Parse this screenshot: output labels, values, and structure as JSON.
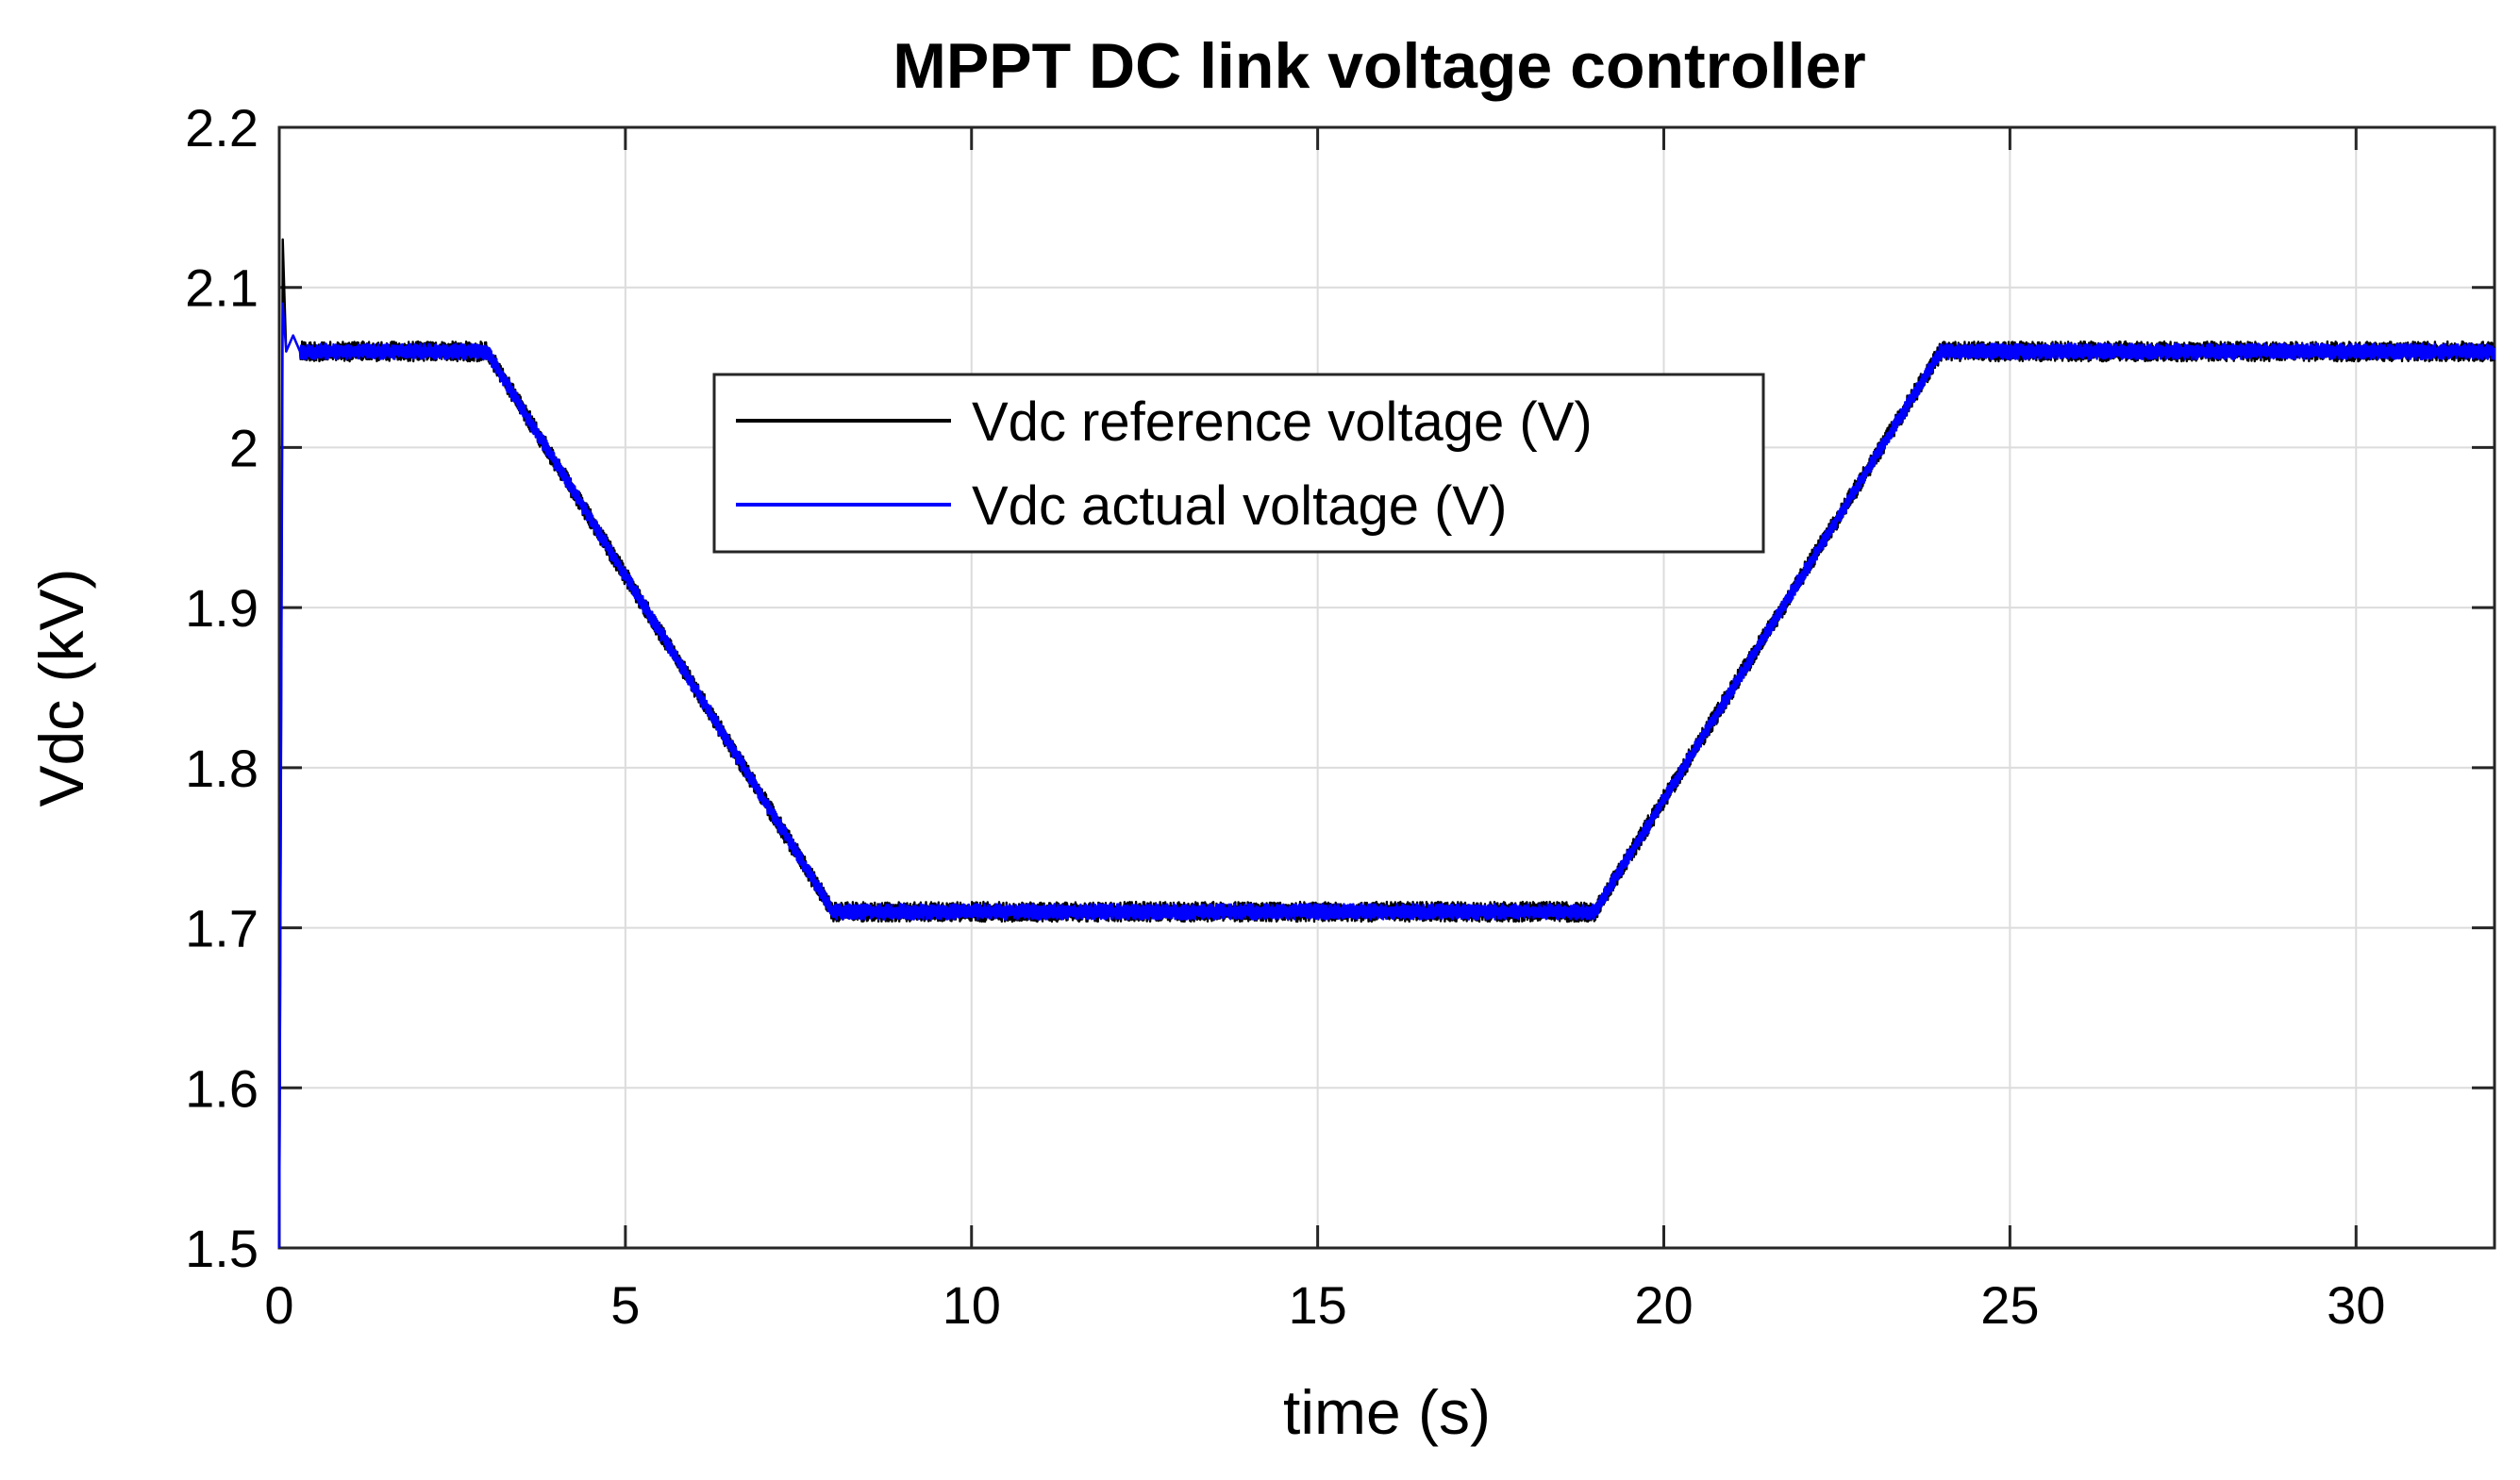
{
  "chart_data": {
    "type": "line",
    "title": "MPPT DC link voltage controller",
    "xlabel": "time (s)",
    "ylabel": "Vdc (kV)",
    "xlim": [
      0,
      32
    ],
    "ylim": [
      1.5,
      2.2
    ],
    "xticks": [
      0,
      5,
      10,
      15,
      20,
      25,
      30
    ],
    "xtick_labels": [
      "0",
      "5",
      "10",
      "15",
      "20",
      "25",
      "30"
    ],
    "yticks": [
      1.5,
      1.6,
      1.7,
      1.8,
      1.9,
      2.0,
      2.1,
      2.2
    ],
    "ytick_labels": [
      "1.5",
      "1.6",
      "1.7",
      "1.8",
      "1.9",
      "2",
      "2.1",
      "2.2"
    ],
    "grid": true,
    "legend_position": "top-center",
    "series": [
      {
        "name": "Vdc reference voltage (V)",
        "color": "#000000",
        "x": [
          0,
          0.05,
          0.1,
          0.2,
          0.3,
          3.0,
          8.0,
          19.0,
          24.0,
          32.0
        ],
        "y": [
          1.5,
          2.13,
          2.06,
          2.07,
          2.06,
          2.06,
          1.71,
          1.71,
          2.06,
          2.06
        ]
      },
      {
        "name": "Vdc actual voltage (V)",
        "color": "#0000ff",
        "x": [
          0,
          0.05,
          0.1,
          0.2,
          0.3,
          3.0,
          8.0,
          19.0,
          24.0,
          32.0
        ],
        "y": [
          1.5,
          2.09,
          2.06,
          2.07,
          2.06,
          2.06,
          1.71,
          1.71,
          2.06,
          2.06
        ]
      }
    ]
  }
}
